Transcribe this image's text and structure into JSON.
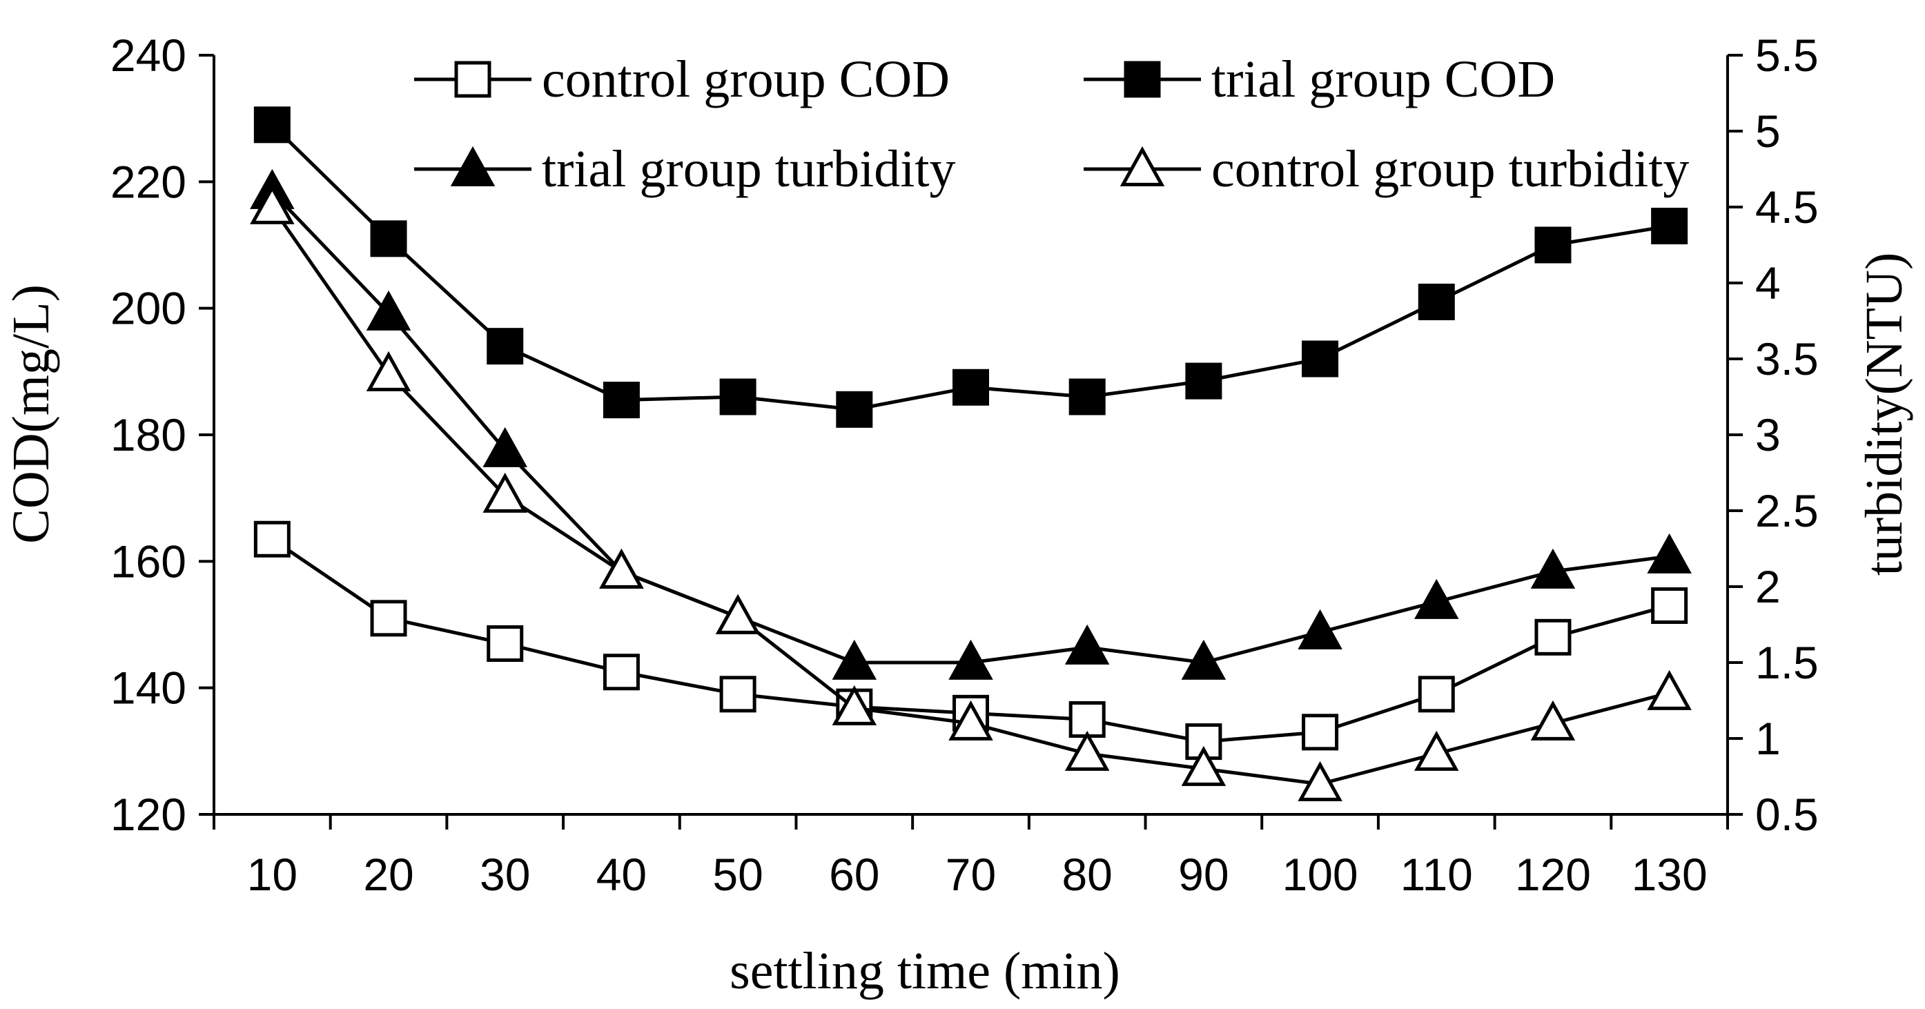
{
  "chart_data": {
    "type": "line",
    "x": [
      10,
      20,
      30,
      40,
      50,
      60,
      70,
      80,
      90,
      100,
      110,
      120,
      130
    ],
    "xlabel": "settling time (min)",
    "ylabel_left": "COD(mg/L)",
    "ylabel_right": "turbidity(NTU)",
    "ylim_left": [
      120,
      240
    ],
    "ylim_right": [
      0.5,
      5.5
    ],
    "xticks": [
      "10",
      "20",
      "30",
      "40",
      "50",
      "60",
      "70",
      "80",
      "90",
      "100",
      "110",
      "120",
      "130"
    ],
    "yticks_left": [
      "120",
      "140",
      "160",
      "180",
      "200",
      "220",
      "240"
    ],
    "yticks_right": [
      "0.5",
      "1",
      "1.5",
      "2",
      "2.5",
      "3",
      "3.5",
      "4",
      "4.5",
      "5",
      "5.5"
    ],
    "grid": false,
    "legend_position": "top",
    "series": [
      {
        "name": "control group COD",
        "axis": "left",
        "marker": "square-open",
        "values": [
          163.5,
          151,
          147,
          142.5,
          139,
          137,
          136,
          135,
          131.5,
          133,
          139,
          148,
          153
        ]
      },
      {
        "name": "trial group COD",
        "axis": "left",
        "marker": "square-filled",
        "values": [
          229,
          211,
          194,
          185.5,
          186,
          184,
          187.5,
          186,
          188.5,
          192,
          201,
          210,
          213
        ]
      },
      {
        "name": "trial group turbidity",
        "axis": "right",
        "marker": "triangle-filled",
        "values": [
          4.6,
          3.8,
          2.9,
          2.1,
          1.8,
          1.5,
          1.5,
          1.6,
          1.5,
          1.7,
          1.9,
          2.1,
          2.2
        ]
      },
      {
        "name": "control group turbidity",
        "axis": "right",
        "marker": "triangle-open",
        "values": [
          4.5,
          3.4,
          2.6,
          2.1,
          1.8,
          1.2,
          1.1,
          0.9,
          0.8,
          0.7,
          0.9,
          1.1,
          1.3
        ]
      }
    ]
  }
}
